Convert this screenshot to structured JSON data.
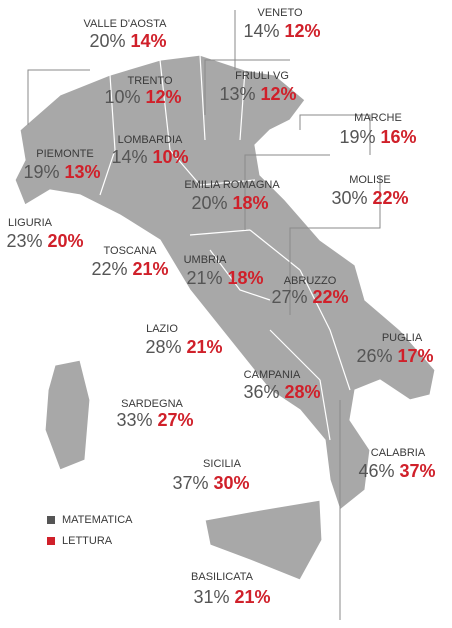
{
  "legend": [
    {
      "label": "MATEMATICA",
      "color": "#555555"
    },
    {
      "label": "LETTURA",
      "color": "#d0202a"
    }
  ],
  "regions": [
    {
      "name": "VALLE D'AOSTA",
      "matematica": "20%",
      "lettura": "14%"
    },
    {
      "name": "VENETO",
      "matematica": "14%",
      "lettura": "12%"
    },
    {
      "name": "TRENTO",
      "matematica": "10%",
      "lettura": "12%"
    },
    {
      "name": "FRIULI VG",
      "matematica": "13%",
      "lettura": "12%"
    },
    {
      "name": "MARCHE",
      "matematica": "19%",
      "lettura": "16%"
    },
    {
      "name": "LOMBARDIA",
      "matematica": "14%",
      "lettura": "10%"
    },
    {
      "name": "PIEMONTE",
      "matematica": "19%",
      "lettura": "13%"
    },
    {
      "name": "EMILIA ROMAGNA",
      "matematica": "20%",
      "lettura": "18%"
    },
    {
      "name": "MOLISE",
      "matematica": "30%",
      "lettura": "22%"
    },
    {
      "name": "LIGURIA",
      "matematica": "23%",
      "lettura": "20%"
    },
    {
      "name": "TOSCANA",
      "matematica": "22%",
      "lettura": "21%"
    },
    {
      "name": "UMBRIA",
      "matematica": "21%",
      "lettura": "18%"
    },
    {
      "name": "ABRUZZO",
      "matematica": "27%",
      "lettura": "22%"
    },
    {
      "name": "LAZIO",
      "matematica": "28%",
      "lettura": "21%"
    },
    {
      "name": "PUGLIA",
      "matematica": "26%",
      "lettura": "17%"
    },
    {
      "name": "CAMPANIA",
      "matematica": "36%",
      "lettura": "28%"
    },
    {
      "name": "SARDEGNA",
      "matematica": "33%",
      "lettura": "27%"
    },
    {
      "name": "CALABRIA",
      "matematica": "46%",
      "lettura": "37%"
    },
    {
      "name": "SICILIA",
      "matematica": "37%",
      "lettura": "30%"
    },
    {
      "name": "BASILICATA",
      "matematica": "31%",
      "lettura": "21%"
    }
  ]
}
